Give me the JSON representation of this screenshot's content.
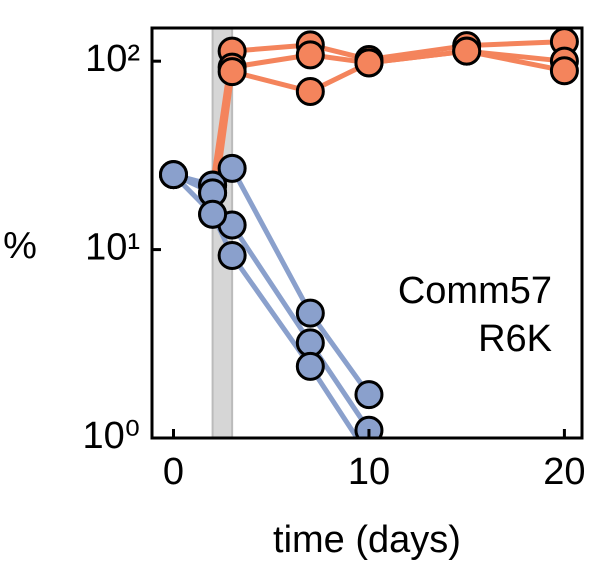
{
  "chart_data": {
    "type": "line",
    "xlabel": "time (days)",
    "ylabel": "%",
    "annotation": [
      "Comm57",
      "R6K"
    ],
    "log_y": true,
    "xlim": [
      -1.1,
      20.9
    ],
    "xticks": [
      0,
      10,
      20
    ],
    "ylim": [
      1,
      150
    ],
    "yticks": [
      {
        "value": 1,
        "label": "10⁰"
      },
      {
        "value": 10,
        "label": "10¹"
      },
      {
        "value": 100,
        "label": "10²"
      }
    ],
    "shaded_region": [
      2,
      3
    ],
    "series": [
      {
        "color": "#f4845c",
        "x": [
          2,
          3,
          7,
          10,
          15,
          20
        ],
        "values": [
          22,
          113,
          122,
          102,
          121,
          127
        ]
      },
      {
        "color": "#f4845c",
        "x": [
          2,
          3,
          7,
          10,
          15,
          20
        ],
        "values": [
          20,
          93,
          108,
          98,
          113,
          100
        ]
      },
      {
        "color": "#f4845c",
        "x": [
          2,
          3,
          7,
          10,
          15,
          20
        ],
        "values": [
          15.4,
          88,
          69,
          98,
          113,
          89
        ]
      },
      {
        "color": "#8aa0cc",
        "x": [
          0,
          2,
          3,
          7,
          10
        ],
        "values": [
          25,
          22,
          27,
          4.6,
          1.7
        ]
      },
      {
        "color": "#8aa0cc",
        "x": [
          0,
          2,
          3,
          7,
          10
        ],
        "values": [
          25,
          20,
          13.5,
          3.2,
          1.1
        ]
      },
      {
        "color": "#8aa0cc",
        "x": [
          0,
          2,
          3,
          7,
          10
        ],
        "values": [
          25,
          15.4,
          9.3,
          2.4,
          0.8
        ]
      }
    ]
  }
}
